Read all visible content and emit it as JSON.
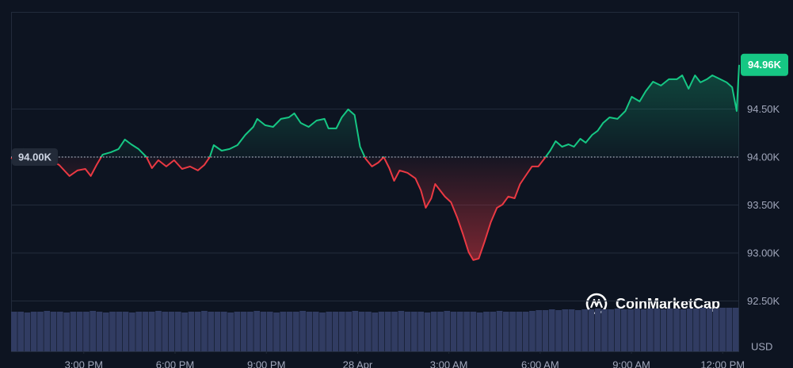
{
  "chart_data": {
    "type": "line",
    "up_color": "#16c784",
    "down_color": "#ea3943",
    "volume_color": "#313c62",
    "baseline": {
      "value": 94.0,
      "label": "94.00K"
    },
    "price_tag": {
      "value": 94.96,
      "label": "94.96K"
    },
    "currency": "USD",
    "watermark": "CoinMarketCap",
    "grid": true,
    "xlim": [
      12.61,
      36.54
    ],
    "ylim": [
      91.975,
      95.512
    ],
    "xticks": [
      {
        "value": 15,
        "label": "3:00 PM"
      },
      {
        "value": 18,
        "label": "6:00 PM"
      },
      {
        "value": 21,
        "label": "9:00 PM"
      },
      {
        "value": 24,
        "label": "28 Apr"
      },
      {
        "value": 27,
        "label": "3:00 AM"
      },
      {
        "value": 30,
        "label": "6:00 AM"
      },
      {
        "value": 33,
        "label": "9:00 AM"
      },
      {
        "value": 36,
        "label": "12:00 PM"
      }
    ],
    "yticks": [
      {
        "value": 92.5,
        "label": "92.50K"
      },
      {
        "value": 93.0,
        "label": "93.00K"
      },
      {
        "value": 93.5,
        "label": "93.50K"
      },
      {
        "value": 94.0,
        "label": "94.00K"
      },
      {
        "value": 94.5,
        "label": "94.50K"
      }
    ],
    "x": [
      12.61,
      13.02,
      13.41,
      13.8,
      14.19,
      14.53,
      14.79,
      15.05,
      15.23,
      15.42,
      15.62,
      15.89,
      16.14,
      16.35,
      16.56,
      16.8,
      17.06,
      17.24,
      17.45,
      17.71,
      17.97,
      18.23,
      18.49,
      18.75,
      18.96,
      19.14,
      19.27,
      19.53,
      19.79,
      20.05,
      20.31,
      20.57,
      20.7,
      20.96,
      21.22,
      21.48,
      21.74,
      21.92,
      22.13,
      22.39,
      22.65,
      22.91,
      23.04,
      23.3,
      23.48,
      23.69,
      23.9,
      24.08,
      24.26,
      24.47,
      24.68,
      24.86,
      25.04,
      25.2,
      25.38,
      25.64,
      25.9,
      26.08,
      26.24,
      26.42,
      26.55,
      26.71,
      26.87,
      27.07,
      27.28,
      27.46,
      27.65,
      27.8,
      27.98,
      28.17,
      28.38,
      28.58,
      28.76,
      28.95,
      29.16,
      29.34,
      29.55,
      29.73,
      29.94,
      30.14,
      30.33,
      30.51,
      30.72,
      30.93,
      31.11,
      31.32,
      31.5,
      31.71,
      31.89,
      32.07,
      32.28,
      32.54,
      32.8,
      33.01,
      33.27,
      33.47,
      33.71,
      33.97,
      34.23,
      34.49,
      34.67,
      34.88,
      35.09,
      35.27,
      35.48,
      35.66,
      35.92,
      36.13,
      36.31,
      36.46,
      36.54
    ],
    "values": [
      93.983,
      94.083,
      94.0,
      93.983,
      93.917,
      93.802,
      93.86,
      93.876,
      93.802,
      93.917,
      94.025,
      94.05,
      94.083,
      94.182,
      94.132,
      94.083,
      94.0,
      93.884,
      93.967,
      93.901,
      93.967,
      93.876,
      93.901,
      93.86,
      93.917,
      94.0,
      94.124,
      94.066,
      94.083,
      94.124,
      94.231,
      94.314,
      94.397,
      94.331,
      94.314,
      94.397,
      94.413,
      94.455,
      94.355,
      94.314,
      94.38,
      94.397,
      94.298,
      94.298,
      94.413,
      94.496,
      94.438,
      94.107,
      93.983,
      93.901,
      93.942,
      94.0,
      93.884,
      93.752,
      93.86,
      93.835,
      93.777,
      93.653,
      93.471,
      93.57,
      93.719,
      93.653,
      93.587,
      93.529,
      93.364,
      93.198,
      93.008,
      92.926,
      92.942,
      93.116,
      93.322,
      93.471,
      93.504,
      93.587,
      93.57,
      93.719,
      93.818,
      93.901,
      93.901,
      93.983,
      94.066,
      94.165,
      94.107,
      94.132,
      94.107,
      94.19,
      94.149,
      94.231,
      94.273,
      94.355,
      94.413,
      94.397,
      94.479,
      94.628,
      94.579,
      94.686,
      94.785,
      94.744,
      94.81,
      94.81,
      94.851,
      94.711,
      94.851,
      94.777,
      94.81,
      94.851,
      94.81,
      94.777,
      94.727,
      94.479,
      94.96
    ],
    "volume": [
      50,
      50,
      49,
      50,
      50,
      51,
      50,
      50,
      49,
      50,
      50,
      50,
      51,
      50,
      49,
      50,
      50,
      50,
      49,
      50,
      50,
      50,
      51,
      50,
      50,
      50,
      49,
      50,
      50,
      51,
      50,
      50,
      50,
      49,
      50,
      50,
      50,
      51,
      50,
      50,
      49,
      50,
      50,
      50,
      51,
      50,
      50,
      49,
      50,
      50,
      50,
      50,
      51,
      50,
      50,
      49,
      50,
      50,
      50,
      51,
      50,
      50,
      50,
      49,
      50,
      50,
      51,
      50,
      50,
      50,
      50,
      49,
      50,
      50,
      51,
      50,
      50,
      50,
      50,
      51,
      52,
      52,
      53,
      52,
      53,
      53,
      52,
      53,
      53,
      54,
      53,
      53,
      54,
      53,
      53,
      54,
      53,
      54,
      54,
      53,
      54,
      54,
      53,
      54,
      54,
      55,
      54,
      54,
      55,
      55,
      55
    ]
  }
}
